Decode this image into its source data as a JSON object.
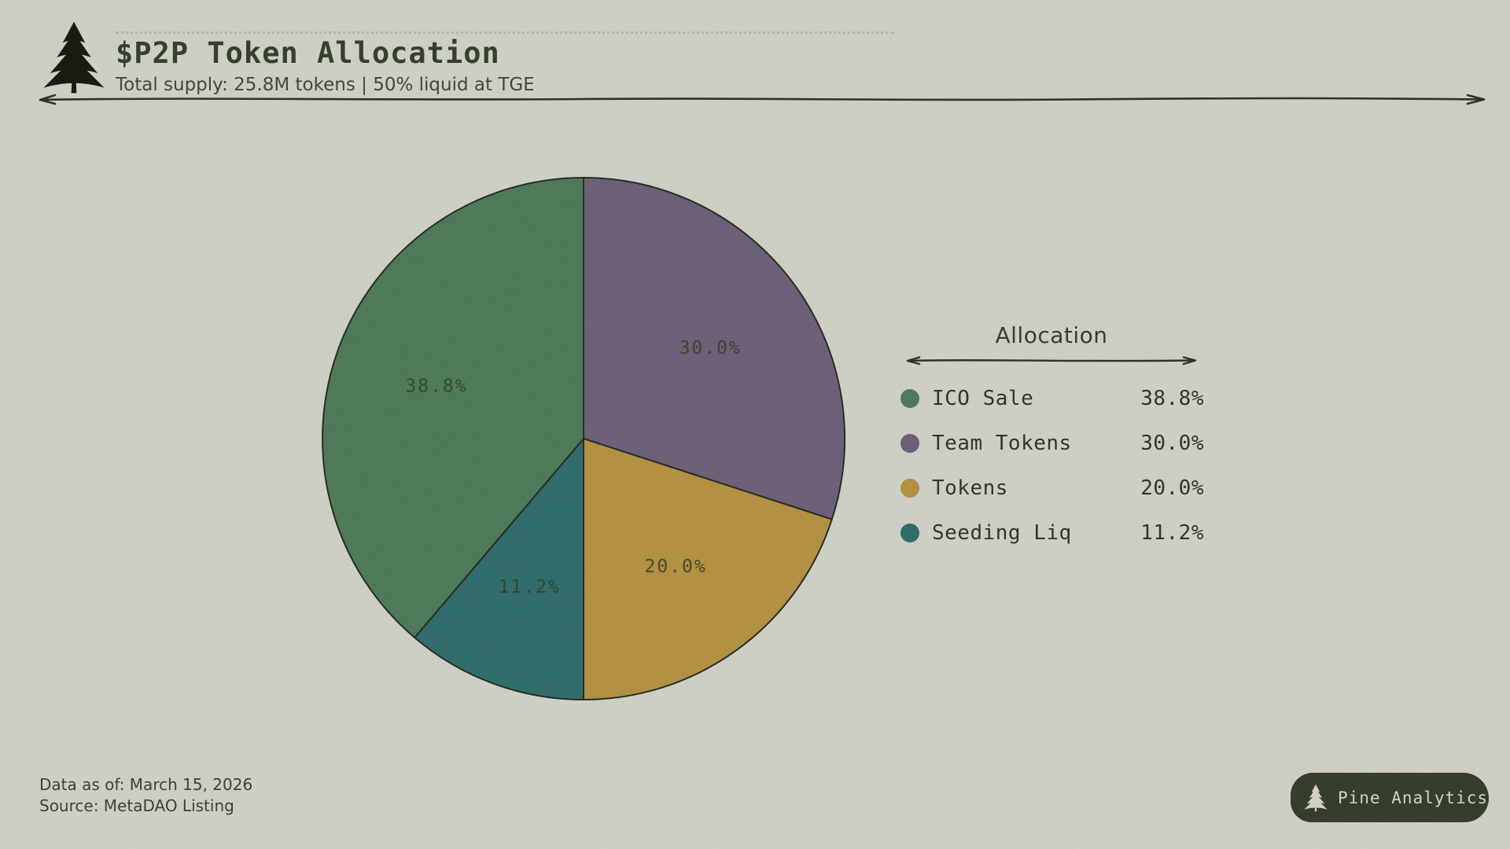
{
  "page": {
    "background": "#e4e5d9",
    "ink": "#3c4733"
  },
  "header": {
    "logo_icon": "pine-tree-icon",
    "title": "$P2P Token Allocation",
    "subtitle": "Total supply: 25.8M tokens | 50% liquid at TGE"
  },
  "chart_data": {
    "type": "pie",
    "title": "$P2P Token Allocation",
    "subtitle": "Total supply: 25.8M tokens | 50% liquid at TGE",
    "legend_title": "Allocation",
    "slices": [
      {
        "label": "ICO Sale",
        "value": 38.8,
        "value_label": "38.8%",
        "color": "#578763"
      },
      {
        "label": "Team Tokens",
        "value": 30.0,
        "value_label": "30.0%",
        "color": "#786a85"
      },
      {
        "label": "Tokens",
        "value": 20.0,
        "value_label": "20.0%",
        "color": "#c5a04a"
      },
      {
        "label": "Seeding Liq",
        "value": 11.2,
        "value_label": "11.2%",
        "color": "#377879"
      }
    ],
    "layout": {
      "start_angle": "12-oclock",
      "direction": "clockwise",
      "draw_order": [
        1,
        2,
        3,
        0
      ],
      "label_radius_fraction": 0.6,
      "outline_color": "#2c3326",
      "label_color": "#39432c",
      "legend_position": "right"
    }
  },
  "legend": {
    "title": "Allocation"
  },
  "footer": {
    "data_as_of": "Data as of: March 15, 2026",
    "source": "Source: MetaDAO Listing"
  },
  "badge": {
    "icon": "pine-tree-icon",
    "label": "Pine Analytics",
    "background": "#3a452f",
    "text_color": "#ebe8d8"
  }
}
